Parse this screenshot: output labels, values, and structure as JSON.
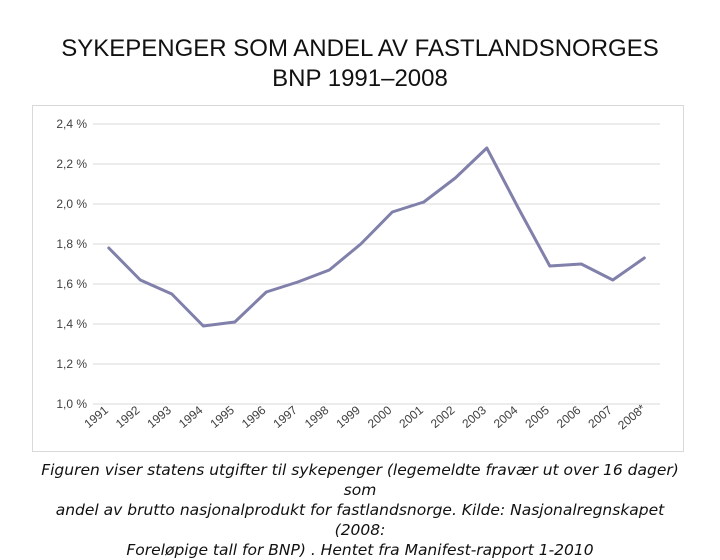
{
  "title": {
    "line1": "SYKEPENGER SOM ANDEL AV FASTLANDSNORGES",
    "line2": "BNP 1991–2008"
  },
  "caption": {
    "line1": "Figuren viser statens utgifter til sykepenger (legemeldte fravær ut over 16 dager) som",
    "line2": "andel av brutto nasjonalprodukt for fastlandsnorge. Kilde: Nasjonalregnskapet (2008:",
    "line3": "Foreløpige tall for BNP) . Hentet fra Manifest-rapport 1-2010"
  },
  "colors": {
    "line": "#8080ab",
    "grid": "#d9d9d9",
    "text": "#404040"
  },
  "chart_data": {
    "type": "line",
    "categories": [
      "1991",
      "1992",
      "1993",
      "1994",
      "1995",
      "1996",
      "1997",
      "1998",
      "1999",
      "2000",
      "2001",
      "2002",
      "2003",
      "2004",
      "2005",
      "2006",
      "2007",
      "2008*"
    ],
    "series": [
      {
        "values": [
          1.78,
          1.62,
          1.55,
          1.39,
          1.41,
          1.56,
          1.61,
          1.67,
          1.8,
          1.96,
          2.01,
          2.13,
          2.28,
          1.98,
          1.69,
          1.7,
          1.62,
          1.73
        ]
      }
    ],
    "y_ticks": [
      {
        "value": 1.0,
        "label": "1,0 %"
      },
      {
        "value": 1.2,
        "label": "1,2 %"
      },
      {
        "value": 1.4,
        "label": "1,4 %"
      },
      {
        "value": 1.6,
        "label": "1,6 %"
      },
      {
        "value": 1.8,
        "label": "1,8 %"
      },
      {
        "value": 2.0,
        "label": "2,0 %"
      },
      {
        "value": 2.2,
        "label": "2,2 %"
      },
      {
        "value": 2.4,
        "label": "2,4 %"
      }
    ],
    "ylim": [
      1.0,
      2.4
    ],
    "grid": true,
    "legend": "none"
  }
}
